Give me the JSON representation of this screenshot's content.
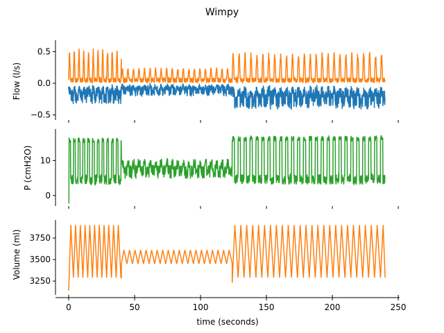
{
  "figure": {
    "title": "Wimpy",
    "xlabel": "time (seconds)"
  },
  "x_axis": {
    "range": [
      -10,
      251
    ],
    "ticks": [
      0,
      50,
      100,
      150,
      200,
      250
    ]
  },
  "colors": {
    "blue": "#1f77b4",
    "orange": "#ff7f0e",
    "green": "#2ca02c"
  },
  "chart_data": [
    {
      "type": "line",
      "ylabel": "Flow (l/s)",
      "ylim": [
        -0.58,
        0.68
      ],
      "yticks": [
        -0.5,
        0.0,
        0.5
      ],
      "ytick_labels": [
        "−0.5",
        "0.0",
        "0.5"
      ],
      "x_range": [
        0,
        240
      ],
      "series": [
        {
          "color": "#ff7f0e",
          "breath_periods": [
            [
              0,
              40,
              3.6
            ],
            [
              40,
              124,
              4.2
            ],
            [
              124,
              240,
              4.5
            ]
          ],
          "peak_values": [
            0.55,
            0.25,
            0.5
          ],
          "base_value": 0.05
        },
        {
          "color": "#1f77b4",
          "breath_periods": [
            [
              0,
              40,
              3.6
            ],
            [
              40,
              124,
              4.2
            ],
            [
              124,
              240,
              4.5
            ]
          ],
          "trough_values": [
            -0.35,
            -0.22,
            -0.42
          ],
          "base_value": 0.05
        }
      ]
    },
    {
      "type": "line",
      "ylabel": "P (cmH2O)",
      "ylim": [
        -3,
        19
      ],
      "yticks": [
        0,
        10
      ],
      "ytick_labels": [
        "0",
        "10"
      ],
      "x_range": [
        0,
        240
      ],
      "series": [
        {
          "color": "#2ca02c",
          "breath_periods": [
            [
              0,
              40,
              3.6
            ],
            [
              40,
              124,
              4.2
            ],
            [
              124,
              240,
              4.5
            ]
          ],
          "high_values": [
            16.5,
            10.5,
            17
          ],
          "low_values": [
            4,
            6,
            4
          ]
        }
      ]
    },
    {
      "type": "line",
      "ylabel": "Volume (ml)",
      "ylim": [
        3090,
        3960
      ],
      "yticks": [
        3250,
        3500,
        3750
      ],
      "ytick_labels": [
        "3250",
        "3500",
        "3750"
      ],
      "x_range": [
        0,
        240
      ],
      "series": [
        {
          "color": "#ff7f0e",
          "segments": [
            {
              "t0": 0,
              "t1": 40,
              "period": 3.6,
              "min": 3290,
              "max": 3900,
              "start": 3140
            },
            {
              "t0": 40,
              "t1": 124,
              "period": 4.2,
              "min": 3450,
              "max": 3610
            },
            {
              "t0": 124,
              "t1": 240,
              "period": 4.5,
              "min": 3290,
              "max": 3900,
              "start": 3230
            }
          ]
        }
      ]
    }
  ]
}
